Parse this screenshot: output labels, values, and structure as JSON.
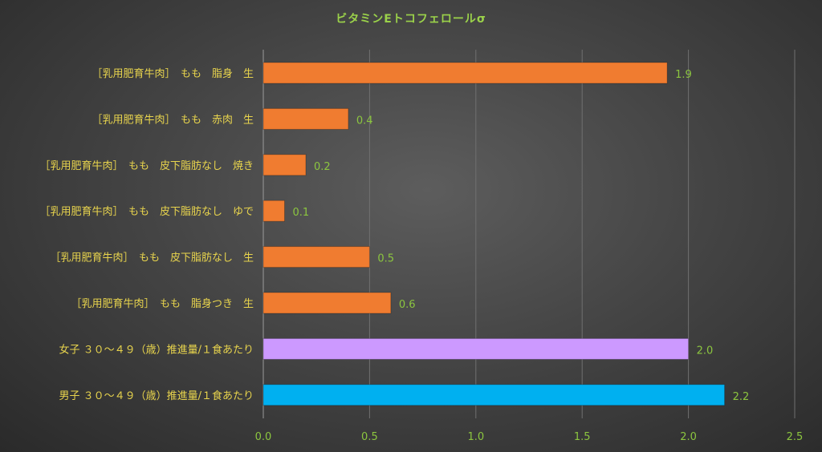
{
  "chart_data": {
    "type": "bar",
    "orientation": "horizontal",
    "title": "ビタミンEトコフェロールσ",
    "categories": [
      "［乳用肥育牛肉］　もも　脂身　生",
      "［乳用肥育牛肉］　もも　赤肉　生",
      "［乳用肥育牛肉］　もも　皮下脂肪なし　焼き",
      "［乳用肥育牛肉］　もも　皮下脂肪なし　ゆで",
      "［乳用肥育牛肉］　もも　皮下脂肪なし　生",
      "［乳用肥育牛肉］　もも　脂身つき　生",
      "女子 ３０～４９（歳）推進量/１食あたり",
      "男子 ３０～４９（歳）推進量/１食あたり"
    ],
    "values": [
      1.9,
      0.4,
      0.2,
      0.1,
      0.5,
      0.6,
      2.0,
      2.17
    ],
    "value_labels": [
      "1.9",
      "0.4",
      "0.2",
      "0.1",
      "0.5",
      "0.6",
      "2.0",
      "2.2"
    ],
    "bar_colors": [
      "#f07c30",
      "#f07c30",
      "#f07c30",
      "#f07c30",
      "#f07c30",
      "#f07c30",
      "#cc99ff",
      "#00b0f0"
    ],
    "xlim": [
      0,
      2.5
    ],
    "xticks": [
      "0.0",
      "0.5",
      "1.0",
      "1.5",
      "2.0",
      "2.5"
    ],
    "grid": true,
    "colors": {
      "title": "#9bd24a",
      "tick_label": "#8cc63f",
      "category_label": "#e8d44d",
      "value_label": "#8cc63f",
      "grid": "#707070"
    }
  }
}
